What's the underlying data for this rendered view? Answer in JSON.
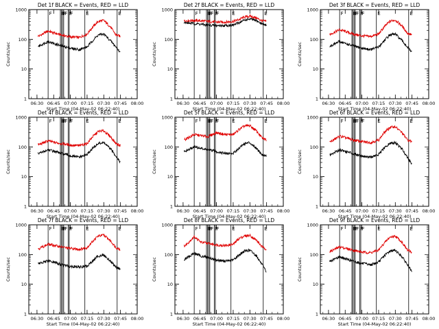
{
  "figure": {
    "xlabel": "Start Time (04-May-02 06:22:40)",
    "ylabel": "Counts/sec",
    "x_tick_labels": [
      "06:30",
      "06:45",
      "07:00",
      "07:15",
      "07:30",
      "07:45",
      "08:00"
    ],
    "y_tick_labels": [
      "1",
      "10",
      "100",
      "1000"
    ],
    "colors": {
      "events": "#000000",
      "lld": "#e00000",
      "axes": "#000000",
      "background": "#ffffff"
    }
  },
  "chart_data": [
    {
      "type": "line",
      "title": "Det 1f BLACK = Events, RED = LLD",
      "xlim": [
        "06:22:40",
        "08:00:00"
      ],
      "x_ticks": [
        "06:30",
        "06:45",
        "07:00",
        "07:15",
        "07:30",
        "07:45",
        "08:00"
      ],
      "ylim": [
        1,
        1000
      ],
      "log_y": true,
      "xlabel": "Start Time (04-May-02 06:22:40)",
      "ylabel": "Counts/sec",
      "x": [
        "06:32",
        "06:40",
        "06:46",
        "06:52",
        "07:00",
        "07:08",
        "07:15",
        "07:20",
        "07:25",
        "07:30",
        "07:36",
        "07:41",
        "07:45"
      ],
      "series": [
        {
          "color": "#e00000",
          "values": [
            130,
            190,
            160,
            140,
            120,
            115,
            150,
            260,
            400,
            430,
            260,
            140,
            125
          ]
        },
        {
          "color": "#000000",
          "values": [
            60,
            85,
            70,
            60,
            50,
            45,
            55,
            90,
            140,
            150,
            90,
            55,
            35
          ]
        }
      ],
      "series_start": "06:31",
      "event_lines": [
        "06:40",
        "06:51",
        "06:52",
        "06:53",
        "06:54",
        "06:58",
        "06:59",
        "07:13",
        "07:42"
      ],
      "event_flags": [
        "F",
        "F",
        "F",
        "F",
        "F",
        "F",
        "F",
        "E",
        "E"
      ]
    },
    {
      "type": "line",
      "title": "Det 2f BLACK = Events, RED = LLD",
      "xlim": [
        "06:22:40",
        "08:00:00"
      ],
      "x_ticks": [
        "06:30",
        "06:45",
        "07:00",
        "07:15",
        "07:30",
        "07:45",
        "08:00"
      ],
      "ylim": [
        1,
        1000
      ],
      "log_y": true,
      "xlabel": "Start Time (04-May-02 06:22:40)",
      "ylabel": "Counts/sec",
      "x": [
        "06:32",
        "06:40",
        "06:46",
        "06:52",
        "07:00",
        "07:08",
        "07:15",
        "07:20",
        "07:25",
        "07:30",
        "07:36",
        "07:41",
        "07:45"
      ],
      "series": [
        {
          "color": "#e00000",
          "values": [
            420,
            430,
            420,
            400,
            380,
            380,
            400,
            460,
            560,
            600,
            520,
            420,
            400
          ]
        },
        {
          "color": "#000000",
          "values": [
            360,
            340,
            320,
            300,
            290,
            290,
            300,
            360,
            440,
            480,
            420,
            330,
            300
          ]
        }
      ],
      "series_start": "06:22",
      "event_lines": [
        "06:40",
        "06:51",
        "06:52",
        "06:53",
        "06:54",
        "06:58",
        "06:59",
        "07:13",
        "07:42"
      ],
      "event_flags": [
        "F",
        "F",
        "F",
        "F",
        "F",
        "F",
        "F",
        "E",
        "E"
      ]
    },
    {
      "type": "line",
      "title": "Det 3f BLACK = Events, RED = LLD",
      "xlim": [
        "06:22:40",
        "08:00:00"
      ],
      "x_ticks": [
        "06:30",
        "06:45",
        "07:00",
        "07:15",
        "07:30",
        "07:45",
        "08:00"
      ],
      "ylim": [
        1,
        1000
      ],
      "log_y": true,
      "xlabel": "Start Time (04-May-02 06:22:40)",
      "ylabel": "Counts/sec",
      "x": [
        "06:32",
        "06:40",
        "06:46",
        "06:52",
        "07:00",
        "07:08",
        "07:15",
        "07:20",
        "07:25",
        "07:30",
        "07:36",
        "07:41",
        "07:45"
      ],
      "series": [
        {
          "color": "#e00000",
          "values": [
            150,
            210,
            180,
            150,
            130,
            125,
            150,
            260,
            400,
            450,
            280,
            160,
            140
          ]
        },
        {
          "color": "#000000",
          "values": [
            60,
            85,
            70,
            60,
            50,
            45,
            55,
            90,
            140,
            150,
            90,
            55,
            35
          ]
        }
      ],
      "series_start": "06:31",
      "event_lines": [
        "06:40",
        "06:51",
        "06:52",
        "06:53",
        "06:54",
        "06:58",
        "06:59",
        "07:13",
        "07:42"
      ],
      "event_flags": [
        "F",
        "F",
        "F",
        "F",
        "F",
        "F",
        "F",
        "E",
        "E"
      ]
    },
    {
      "type": "line",
      "title": "Det 4f BLACK = Events, RED = LLD",
      "xlim": [
        "06:22:40",
        "08:00:00"
      ],
      "x_ticks": [
        "06:30",
        "06:45",
        "07:00",
        "07:15",
        "07:30",
        "07:45",
        "08:00"
      ],
      "ylim": [
        1,
        1000
      ],
      "log_y": true,
      "xlabel": "Start Time (04-May-02 06:22:40)",
      "ylabel": "Counts/sec",
      "x": [
        "06:32",
        "06:40",
        "06:46",
        "06:52",
        "07:00",
        "07:08",
        "07:15",
        "07:20",
        "07:25",
        "07:30",
        "07:36",
        "07:41",
        "07:45"
      ],
      "series": [
        {
          "color": "#e00000",
          "values": [
            120,
            160,
            140,
            130,
            115,
            110,
            130,
            220,
            330,
            350,
            220,
            130,
            110
          ]
        },
        {
          "color": "#000000",
          "values": [
            60,
            80,
            70,
            60,
            50,
            45,
            55,
            90,
            130,
            140,
            85,
            50,
            30
          ]
        }
      ],
      "series_start": "06:31",
      "event_lines": [
        "06:40",
        "06:51",
        "06:52",
        "06:53",
        "06:54",
        "06:58",
        "06:59",
        "07:13",
        "07:42"
      ],
      "event_flags": [
        "F",
        "F",
        "F",
        "F",
        "F",
        "F",
        "F",
        "E",
        "E"
      ]
    },
    {
      "type": "line",
      "title": "Det 5f BLACK = Events, RED = LLD",
      "xlim": [
        "06:22:40",
        "08:00:00"
      ],
      "x_ticks": [
        "06:30",
        "06:45",
        "07:00",
        "07:15",
        "07:30",
        "07:45",
        "08:00"
      ],
      "ylim": [
        1,
        1000
      ],
      "log_y": true,
      "xlabel": "Start Time (04-May-02 06:22:40)",
      "ylabel": "Counts/sec",
      "x": [
        "06:32",
        "06:40",
        "06:46",
        "06:52",
        "07:00",
        "07:08",
        "07:15",
        "07:20",
        "07:25",
        "07:30",
        "07:36",
        "07:41",
        "07:45"
      ],
      "series": [
        {
          "color": "#e00000",
          "values": [
            180,
            260,
            240,
            220,
            300,
            260,
            260,
            380,
            500,
            520,
            340,
            200,
            170
          ]
        },
        {
          "color": "#000000",
          "values": [
            70,
            100,
            90,
            80,
            70,
            60,
            60,
            90,
            130,
            140,
            90,
            55,
            50
          ]
        }
      ],
      "series_start": "06:31",
      "event_lines": [
        "06:40",
        "06:51",
        "06:52",
        "06:53",
        "06:54",
        "06:58",
        "06:59",
        "07:13",
        "07:42"
      ],
      "event_flags": [
        "F",
        "F",
        "F",
        "F",
        "F",
        "F",
        "F",
        "E",
        "E"
      ]
    },
    {
      "type": "line",
      "title": "Det 6f BLACK = Events, RED = LLD",
      "xlim": [
        "06:22:40",
        "08:00:00"
      ],
      "x_ticks": [
        "06:30",
        "06:45",
        "07:00",
        "07:15",
        "07:30",
        "07:45",
        "08:00"
      ],
      "ylim": [
        1,
        1000
      ],
      "log_y": true,
      "xlabel": "Start Time (04-May-02 06:22:40)",
      "ylabel": "Counts/sec",
      "x": [
        "06:32",
        "06:40",
        "06:46",
        "06:52",
        "07:00",
        "07:08",
        "07:15",
        "07:20",
        "07:25",
        "07:30",
        "07:36",
        "07:41",
        "07:45"
      ],
      "series": [
        {
          "color": "#e00000",
          "values": [
            150,
            230,
            200,
            170,
            150,
            140,
            170,
            300,
            450,
            480,
            300,
            170,
            150
          ]
        },
        {
          "color": "#000000",
          "values": [
            55,
            80,
            70,
            60,
            50,
            45,
            55,
            90,
            130,
            140,
            85,
            45,
            25
          ]
        }
      ],
      "series_start": "06:31",
      "event_lines": [
        "06:40",
        "06:51",
        "06:52",
        "06:53",
        "06:54",
        "06:58",
        "06:59",
        "07:13",
        "07:42"
      ],
      "event_flags": [
        "F",
        "F",
        "F",
        "F",
        "F",
        "F",
        "F",
        "E",
        "E"
      ]
    },
    {
      "type": "line",
      "title": "Det 7f BLACK = Events, RED = LLD",
      "xlim": [
        "06:22:40",
        "08:00:00"
      ],
      "x_ticks": [
        "06:30",
        "06:45",
        "07:00",
        "07:15",
        "07:30",
        "07:45",
        "08:00"
      ],
      "ylim": [
        1,
        1000
      ],
      "log_y": true,
      "xlabel": "Start Time (04-May-02 06:22:40)",
      "ylabel": "Counts/sec",
      "x": [
        "06:32",
        "06:40",
        "06:46",
        "06:52",
        "07:00",
        "07:08",
        "07:15",
        "07:20",
        "07:25",
        "07:30",
        "07:36",
        "07:41",
        "07:45"
      ],
      "series": [
        {
          "color": "#e00000",
          "values": [
            160,
            220,
            200,
            180,
            160,
            150,
            170,
            280,
            420,
            450,
            290,
            170,
            150
          ]
        },
        {
          "color": "#000000",
          "values": [
            50,
            60,
            55,
            45,
            40,
            38,
            40,
            60,
            90,
            95,
            60,
            38,
            32
          ]
        }
      ],
      "series_start": "06:31",
      "event_lines": [
        "06:40",
        "06:51",
        "06:52",
        "06:53",
        "06:54",
        "06:58",
        "06:59",
        "07:13",
        "07:42"
      ],
      "event_flags": [
        "F",
        "F",
        "F",
        "F",
        "F",
        "F",
        "F",
        "E",
        "E"
      ]
    },
    {
      "type": "line",
      "title": "Det 8f BLACK = Events, RED = LLD",
      "xlim": [
        "06:22:40",
        "08:00:00"
      ],
      "x_ticks": [
        "06:30",
        "06:45",
        "07:00",
        "07:15",
        "07:30",
        "07:45",
        "08:00"
      ],
      "ylim": [
        1,
        1000
      ],
      "log_y": true,
      "xlabel": "Start Time (04-May-02 06:22:40)",
      "ylabel": "Counts/sec",
      "x": [
        "06:32",
        "06:40",
        "06:46",
        "06:52",
        "07:00",
        "07:08",
        "07:15",
        "07:20",
        "07:25",
        "07:30",
        "07:36",
        "07:41",
        "07:45"
      ],
      "series": [
        {
          "color": "#e00000",
          "values": [
            200,
            400,
            260,
            240,
            210,
            200,
            220,
            340,
            420,
            440,
            300,
            180,
            150
          ]
        },
        {
          "color": "#000000",
          "values": [
            70,
            110,
            90,
            80,
            65,
            60,
            65,
            95,
            130,
            140,
            90,
            45,
            25
          ]
        }
      ],
      "series_start": "06:31",
      "event_lines": [
        "06:40",
        "06:51",
        "06:52",
        "06:53",
        "06:54",
        "06:58",
        "06:59",
        "07:13",
        "07:42"
      ],
      "event_flags": [
        "F",
        "F",
        "F",
        "F",
        "F",
        "F",
        "F",
        "E",
        "E"
      ]
    },
    {
      "type": "line",
      "title": "Det 9f BLACK = Events, RED = LLD",
      "xlim": [
        "06:22:40",
        "08:00:00"
      ],
      "x_ticks": [
        "06:30",
        "06:45",
        "07:00",
        "07:15",
        "07:30",
        "07:45",
        "08:00"
      ],
      "ylim": [
        1,
        1000
      ],
      "log_y": true,
      "xlabel": "Start Time (04-May-02 06:22:40)",
      "ylabel": "Counts/sec",
      "x": [
        "06:32",
        "06:40",
        "06:46",
        "06:52",
        "07:00",
        "07:08",
        "07:15",
        "07:20",
        "07:25",
        "07:30",
        "07:36",
        "07:41",
        "07:45"
      ],
      "series": [
        {
          "color": "#e00000",
          "values": [
            130,
            180,
            160,
            140,
            120,
            115,
            140,
            240,
            380,
            420,
            260,
            140,
            120
          ]
        },
        {
          "color": "#000000",
          "values": [
            60,
            85,
            70,
            60,
            50,
            45,
            55,
            90,
            130,
            140,
            85,
            45,
            25
          ]
        }
      ],
      "series_start": "06:31",
      "event_lines": [
        "06:40",
        "06:51",
        "06:52",
        "06:53",
        "06:54",
        "06:58",
        "06:59",
        "07:13",
        "07:42"
      ],
      "event_flags": [
        "F",
        "F",
        "F",
        "F",
        "F",
        "F",
        "F",
        "E",
        "E"
      ]
    }
  ]
}
